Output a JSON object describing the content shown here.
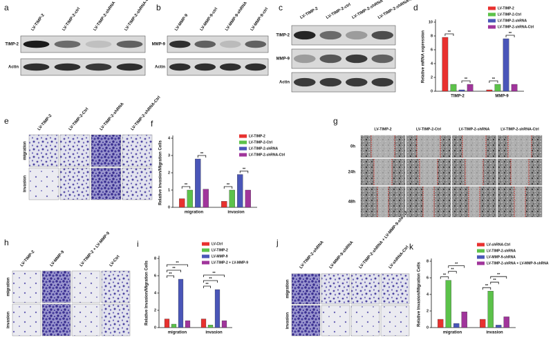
{
  "figure": {
    "a": {
      "letter": "a",
      "columns": [
        "LV-TIMP-2",
        "LV-TIMP-2-ctrl",
        "LV-TIMP-2-shRNA",
        "LV-TIMP-2-shRNA-ctrl"
      ],
      "rows": [
        "TIMP-2",
        "Actin"
      ]
    },
    "b": {
      "letter": "b",
      "columns": [
        "LV-MMP-9",
        "LV-MMP-9-ctrl",
        "LV-MMP-9-shRNA",
        "LV-MMP-9-ctrl"
      ],
      "rows": [
        "MMP-9",
        "Actin"
      ]
    },
    "c": {
      "letter": "c",
      "columns": [
        "LV-TIMP-2",
        "LV-TIMP-2-ctrl",
        "LV-TIMP-2-shRNA",
        "LV-TIMP-2-shRNA-ctrl"
      ],
      "rows": [
        "TIMP-2",
        "MMP-9",
        "Actin"
      ]
    },
    "e": {
      "letter": "e",
      "columns": [
        "LV-TIMP-2",
        "LV-TIMP-2-Ctrl",
        "LV-TIMP-2-shRNA",
        "LV-TIMP-2-shRNA-Ctrl"
      ],
      "rows": [
        "migration",
        "invasion"
      ]
    },
    "g": {
      "letter": "g",
      "columns": [
        "LV-TIMP-2",
        "LV-TIMP-2-Ctrl",
        "LV-TIMP-2-shRNA",
        "LV-TIMP-2-shRNA-Ctrl"
      ],
      "rows": [
        "0h",
        "24h",
        "48h"
      ]
    },
    "h": {
      "letter": "h",
      "columns": [
        "LV-TIMP-2",
        "LV-MMP-9",
        "LV-TIMP-2 + LV-MMP-9",
        "LV-Ctrl"
      ],
      "rows": [
        "migration",
        "invasion"
      ]
    },
    "j": {
      "letter": "j",
      "columns": [
        "LV-TIMP-2-shRNA",
        "LV-MMP-9-shRNA",
        "LV-TIMP-2-shRNA + LV-MMP-9-shRNA",
        "LV-shRNA-Ctrl"
      ],
      "rows": [
        "migration",
        "invasion"
      ]
    }
  },
  "chart_data": [
    {
      "type": "bar",
      "panel": "d",
      "ylabel": "Relative mRNA expression",
      "categories": [
        "TIMP-2",
        "MMP-9"
      ],
      "series": [
        {
          "name": "LV-TIMP-2",
          "color": "#e8312f",
          "values": [
            7.8,
            0.2
          ]
        },
        {
          "name": "LV-TIMP-2-Ctrl",
          "color": "#5cc24a",
          "values": [
            1.0,
            1.0
          ]
        },
        {
          "name": "LV-TIMP-2-shRNA",
          "color": "#4a56b8",
          "values": [
            0.2,
            7.6
          ]
        },
        {
          "name": "LV-TIMP-2-shRNA-Ctrl",
          "color": "#a0359b",
          "values": [
            1.0,
            1.0
          ]
        }
      ],
      "ylim": [
        0,
        10
      ],
      "yticks": [
        0,
        2,
        4,
        6,
        8,
        10
      ],
      "annotations": [
        "**",
        "**",
        "**",
        "**"
      ]
    },
    {
      "type": "bar",
      "panel": "f",
      "ylabel": "Relative Invasion/Migration Cells",
      "categories": [
        "migration",
        "invasion"
      ],
      "series": [
        {
          "name": "LV-TIMP-2",
          "color": "#e8312f",
          "values": [
            0.5,
            0.35
          ]
        },
        {
          "name": "LV-TIMP-2-Ctrl",
          "color": "#5cc24a",
          "values": [
            1.0,
            1.0
          ]
        },
        {
          "name": "LV-TIMP-2-shRNA",
          "color": "#4a56b8",
          "values": [
            2.8,
            1.9
          ]
        },
        {
          "name": "LV-TIMP-2-shRNA-Ctrl",
          "color": "#a0359b",
          "values": [
            1.05,
            1.0
          ]
        }
      ],
      "ylim": [
        0,
        4
      ],
      "yticks": [
        0,
        1,
        2,
        3,
        4
      ],
      "annotations": [
        "**",
        "**",
        "**",
        "**"
      ]
    },
    {
      "type": "bar",
      "panel": "i",
      "ylabel": "Relative Invasion/Migration Cells",
      "categories": [
        "migration",
        "invasion"
      ],
      "series": [
        {
          "name": "LV-Ctrl",
          "color": "#e8312f",
          "values": [
            1.0,
            1.0
          ]
        },
        {
          "name": "LV-TIMP-2",
          "color": "#5cc24a",
          "values": [
            0.4,
            0.3
          ]
        },
        {
          "name": "LV-MMP-9",
          "color": "#4a56b8",
          "values": [
            5.6,
            4.4
          ]
        },
        {
          "name": "LV-TIMP-2 + LV-MMP-9",
          "color": "#a0359b",
          "values": [
            0.8,
            0.8
          ]
        }
      ],
      "ylim": [
        0,
        8
      ],
      "yticks": [
        0,
        2,
        4,
        6,
        8
      ],
      "annotations": [
        "**",
        "**",
        "**",
        "**",
        "**",
        "**"
      ]
    },
    {
      "type": "bar",
      "panel": "k",
      "ylabel": "Relative Invasion/Migration Cells",
      "categories": [
        "migration",
        "invasion"
      ],
      "series": [
        {
          "name": "LV-shRNA-Ctrl",
          "color": "#e8312f",
          "values": [
            1.0,
            1.0
          ]
        },
        {
          "name": "LV-TIMP-2-shRNA",
          "color": "#5cc24a",
          "values": [
            5.7,
            4.4
          ]
        },
        {
          "name": "LV-MMP-9-shRNA",
          "color": "#4a56b8",
          "values": [
            0.5,
            0.3
          ]
        },
        {
          "name": "LV-TIMP-2-shRNA + LV-MMP-9-shRNA",
          "color": "#a0359b",
          "values": [
            1.9,
            1.3
          ]
        }
      ],
      "ylim": [
        0,
        8
      ],
      "yticks": [
        0,
        2,
        4,
        6,
        8
      ],
      "annotations": [
        "**",
        "**",
        "**",
        "**",
        "**",
        "**"
      ]
    }
  ]
}
